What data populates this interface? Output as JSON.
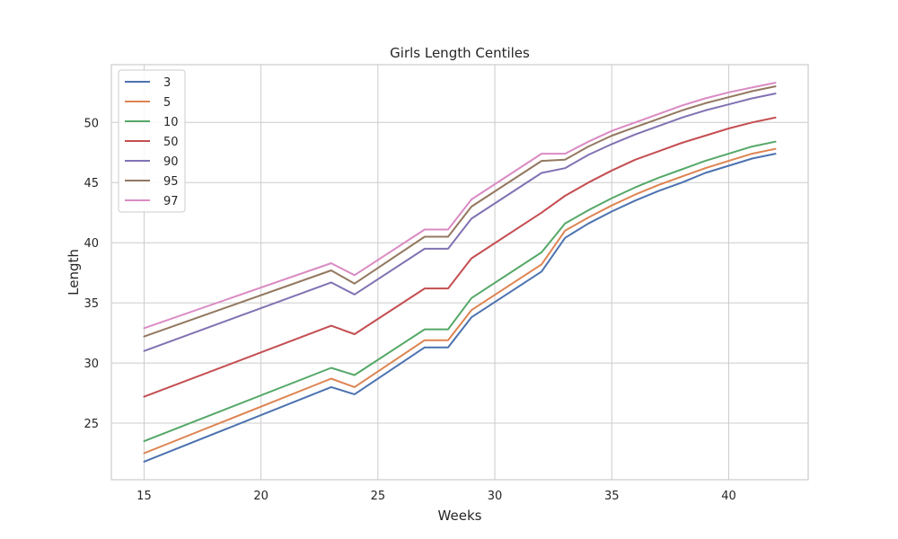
{
  "chart_data": {
    "type": "line",
    "title": "Girls Length Centiles",
    "xlabel": "Weeks",
    "ylabel": "Length",
    "xlim": [
      13.6,
      43.4
    ],
    "ylim": [
      20.3,
      54.8
    ],
    "xticks": [
      15,
      20,
      25,
      30,
      35,
      40
    ],
    "yticks": [
      25,
      30,
      35,
      40,
      45,
      50
    ],
    "grid": true,
    "legend_position": "upper-left",
    "x": [
      15,
      23,
      24,
      27,
      28,
      29,
      32,
      33,
      34,
      35,
      36,
      37,
      38,
      39,
      40,
      41,
      42
    ],
    "series": [
      {
        "name": "3",
        "color": "#4c72b0",
        "values": [
          21.8,
          28.0,
          27.4,
          31.3,
          31.3,
          33.8,
          37.6,
          40.4,
          41.6,
          42.6,
          43.5,
          44.3,
          45.0,
          45.8,
          46.4,
          47.0,
          47.4
        ]
      },
      {
        "name": "5",
        "color": "#dd8452",
        "values": [
          22.5,
          28.7,
          28.0,
          31.9,
          31.9,
          34.4,
          38.2,
          41.0,
          42.1,
          43.1,
          44.0,
          44.8,
          45.5,
          46.2,
          46.8,
          47.4,
          47.8
        ]
      },
      {
        "name": "10",
        "color": "#55a868",
        "values": [
          23.5,
          29.6,
          29.0,
          32.8,
          32.8,
          35.4,
          39.2,
          41.6,
          42.7,
          43.7,
          44.6,
          45.4,
          46.1,
          46.8,
          47.4,
          48.0,
          48.4
        ]
      },
      {
        "name": "50",
        "color": "#c44e52",
        "values": [
          27.2,
          33.1,
          32.4,
          36.2,
          36.2,
          38.7,
          42.5,
          43.9,
          45.0,
          46.0,
          46.9,
          47.6,
          48.3,
          48.9,
          49.5,
          50.0,
          50.4
        ]
      },
      {
        "name": "90",
        "color": "#8172b3",
        "values": [
          31.0,
          36.7,
          35.7,
          39.5,
          39.5,
          42.0,
          45.8,
          46.2,
          47.3,
          48.2,
          49.0,
          49.7,
          50.4,
          51.0,
          51.5,
          52.0,
          52.4
        ]
      },
      {
        "name": "95",
        "color": "#937860",
        "values": [
          32.2,
          37.7,
          36.6,
          40.5,
          40.5,
          43.0,
          46.8,
          46.9,
          48.0,
          48.9,
          49.6,
          50.3,
          51.0,
          51.6,
          52.1,
          52.6,
          53.0
        ]
      },
      {
        "name": "97",
        "color": "#da8bc3",
        "values": [
          32.9,
          38.3,
          37.3,
          41.1,
          41.1,
          43.6,
          47.4,
          47.4,
          48.4,
          49.3,
          50.0,
          50.7,
          51.4,
          52.0,
          52.5,
          52.9,
          53.3
        ]
      }
    ]
  }
}
